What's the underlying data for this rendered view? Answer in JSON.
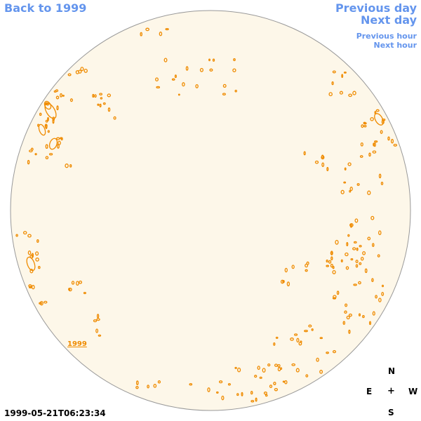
{
  "nav": {
    "back_label": "Back to 1999",
    "prev_day_label": "Previous day",
    "next_day_label": "Next day",
    "prev_hour_label": "Previous hour",
    "next_hour_label": "Next hour"
  },
  "disk": {
    "year_label": "1999",
    "fill_color": "#fdf7e9",
    "rim_color": "#999999",
    "contour_color": "#ef8b00"
  },
  "timestamp": "1999-05-21T06:23:34",
  "compass": {
    "n": "N",
    "e": "E",
    "center": "+",
    "w": "W",
    "s": "S"
  },
  "colors": {
    "link": "#6495ed"
  }
}
